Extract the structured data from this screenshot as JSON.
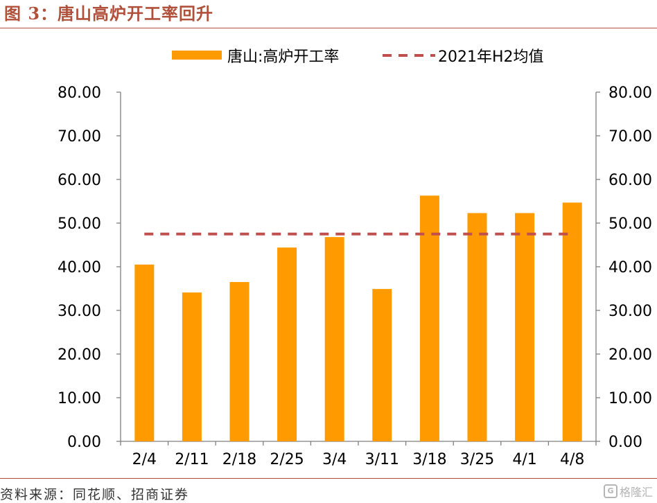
{
  "title": "图 3：唐山高炉开工率回升",
  "source": "资料来源：同花顺、招商证券",
  "watermark": {
    "icon": "G",
    "text": "格隆汇"
  },
  "colors": {
    "bar": "#ff9b00",
    "avg_line": "#c0504d",
    "axis": "#7f7f7f",
    "text": "#000000",
    "accent": "#b0503a"
  },
  "chart_data": {
    "type": "bar",
    "categories": [
      "2/4",
      "2/11",
      "2/18",
      "2/25",
      "3/4",
      "3/11",
      "3/18",
      "3/25",
      "4/1",
      "4/8"
    ],
    "series": [
      {
        "name": "唐山:高炉开工率",
        "type": "bar",
        "values": [
          40.5,
          34.1,
          36.5,
          44.4,
          46.8,
          34.9,
          56.3,
          52.3,
          52.3,
          54.7
        ]
      },
      {
        "name": "2021年H2均值",
        "type": "line",
        "style": "dashed",
        "values": [
          47.5,
          47.5,
          47.5,
          47.5,
          47.5,
          47.5,
          47.5,
          47.5,
          47.5,
          47.5
        ]
      }
    ],
    "yticks": [
      "0.00",
      "10.00",
      "20.00",
      "30.00",
      "40.00",
      "50.00",
      "60.00",
      "70.00",
      "80.00"
    ],
    "ylim": [
      0,
      80
    ],
    "y2lim": [
      0,
      80
    ],
    "grid": false,
    "legend": "top"
  }
}
